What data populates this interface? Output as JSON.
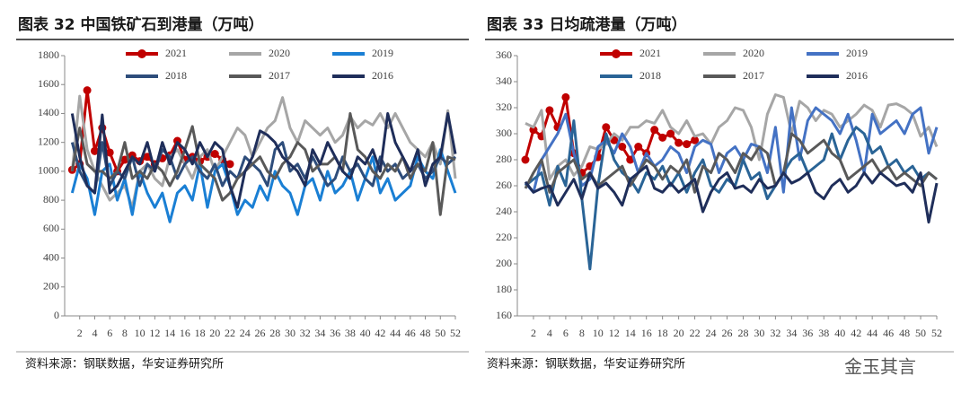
{
  "chart_data": [
    {
      "type": "line",
      "title": "图表 32  中国铁矿石到港量（万吨）",
      "source": "资料来源：钢联数据，华安证券研究所",
      "x": [
        1,
        2,
        3,
        4,
        5,
        6,
        7,
        8,
        9,
        10,
        11,
        12,
        13,
        14,
        15,
        16,
        17,
        18,
        19,
        20,
        21,
        22,
        23,
        24,
        25,
        26,
        27,
        28,
        29,
        30,
        31,
        32,
        33,
        34,
        35,
        36,
        37,
        38,
        39,
        40,
        41,
        42,
        43,
        44,
        45,
        46,
        47,
        48,
        49,
        50,
        51,
        52
      ],
      "xlim": [
        0,
        52
      ],
      "xticks": [
        2,
        4,
        6,
        8,
        10,
        12,
        14,
        16,
        18,
        20,
        22,
        24,
        26,
        28,
        30,
        32,
        34,
        36,
        38,
        40,
        42,
        44,
        46,
        48,
        50,
        52
      ],
      "ylim": [
        0,
        1800
      ],
      "yticks": [
        0,
        200,
        400,
        600,
        800,
        1000,
        1200,
        1400,
        1600,
        1800
      ],
      "series": [
        {
          "name": "2021",
          "color": "#c00000",
          "markers": true,
          "values": [
            1010,
            1050,
            1560,
            1140,
            1300,
            1130,
            1000,
            1080,
            1110,
            1070,
            1100,
            1050,
            1090,
            1110,
            1210,
            1080,
            1100,
            1070,
            1100,
            1120,
            1080,
            1050,
            null,
            null,
            null,
            null,
            null,
            null,
            null,
            null,
            null,
            null,
            null,
            null,
            null,
            null,
            null,
            null,
            null,
            null,
            null,
            null,
            null,
            null,
            null,
            null,
            null,
            null,
            null,
            null,
            null,
            null
          ]
        },
        {
          "name": "2020",
          "color": "#a6a6a6",
          "values": [
            1000,
            1520,
            1150,
            1000,
            900,
            800,
            850,
            900,
            750,
            1000,
            1050,
            950,
            900,
            1100,
            1150,
            1050,
            950,
            1100,
            1150,
            1000,
            1100,
            1200,
            1300,
            1250,
            1100,
            1200,
            1300,
            1350,
            1510,
            1300,
            1200,
            1350,
            1300,
            1250,
            1300,
            1200,
            1250,
            1380,
            1300,
            1350,
            1320,
            1400,
            1300,
            1400,
            1300,
            1200,
            1150,
            1100,
            1200,
            1050,
            1420,
            950
          ]
        },
        {
          "name": "2019",
          "color": "#1a7fd4",
          "values": [
            850,
            1050,
            950,
            700,
            1000,
            1050,
            800,
            950,
            700,
            1000,
            850,
            750,
            850,
            650,
            850,
            900,
            800,
            1050,
            750,
            1000,
            1050,
            900,
            700,
            800,
            750,
            900,
            800,
            1000,
            900,
            850,
            700,
            900,
            950,
            800,
            1000,
            850,
            900,
            1000,
            800,
            950,
            1100,
            850,
            950,
            800,
            850,
            900,
            1100,
            1000,
            950,
            1150,
            1000,
            850
          ]
        },
        {
          "name": "2018",
          "color": "#2e4d7b",
          "values": [
            1200,
            1000,
            900,
            850,
            1200,
            900,
            1000,
            950,
            1100,
            900,
            1050,
            1000,
            1150,
            1100,
            950,
            1050,
            1100,
            1000,
            950,
            1050,
            900,
            1000,
            950,
            1100,
            1050,
            1000,
            900,
            1150,
            1200,
            1000,
            1050,
            950,
            1100,
            1000,
            900,
            950,
            1100,
            1000,
            1050,
            950,
            900,
            1100,
            1000,
            1050,
            950,
            1000,
            1050,
            950,
            1000,
            1100,
            1050,
            1100
          ]
        },
        {
          "name": "2017",
          "color": "#595959",
          "values": [
            1000,
            1300,
            1050,
            1000,
            1000,
            950,
            1000,
            1200,
            950,
            1000,
            950,
            1050,
            1000,
            900,
            1000,
            1150,
            1310,
            1050,
            1000,
            950,
            800,
            850,
            950,
            1000,
            1050,
            1100,
            1000,
            950,
            1050,
            1100,
            1200,
            1150,
            1000,
            1050,
            1050,
            1100,
            1000,
            1400,
            1150,
            1100,
            1000,
            950,
            1050,
            1000,
            1100,
            950,
            1050,
            1000,
            1200,
            700,
            1100,
            1080
          ]
        },
        {
          "name": "2016",
          "color": "#1f2e5a",
          "values": [
            1400,
            1100,
            900,
            850,
            1390,
            850,
            900,
            1000,
            1100,
            1050,
            1200,
            1000,
            1200,
            1050,
            1200,
            1150,
            1050,
            1200,
            1100,
            1200,
            1150,
            900,
            750,
            1000,
            1100,
            1280,
            1250,
            1200,
            1100,
            1050,
            1000,
            900,
            1150,
            1050,
            1200,
            1100,
            1000,
            950,
            1100,
            1050,
            1150,
            1000,
            1400,
            1200,
            1100,
            1000,
            1150,
            900,
            1050,
            1100,
            1400,
            1120
          ]
        }
      ]
    },
    {
      "type": "line",
      "title": "图表 33  日均疏港量（万吨）",
      "source": "资料来源：钢联数据，华安证券研究所",
      "watermark": "金玉其言",
      "x": [
        1,
        2,
        3,
        4,
        5,
        6,
        7,
        8,
        9,
        10,
        11,
        12,
        13,
        14,
        15,
        16,
        17,
        18,
        19,
        20,
        21,
        22,
        23,
        24,
        25,
        26,
        27,
        28,
        29,
        30,
        31,
        32,
        33,
        34,
        35,
        36,
        37,
        38,
        39,
        40,
        41,
        42,
        43,
        44,
        45,
        46,
        47,
        48,
        49,
        50,
        51,
        52
      ],
      "xlim": [
        0,
        52
      ],
      "xticks": [
        2,
        4,
        6,
        8,
        10,
        12,
        14,
        16,
        18,
        20,
        22,
        24,
        26,
        28,
        30,
        32,
        34,
        36,
        38,
        40,
        42,
        44,
        46,
        48,
        50,
        52
      ],
      "ylim": [
        160,
        360
      ],
      "yticks": [
        160,
        180,
        200,
        220,
        240,
        260,
        280,
        300,
        320,
        340,
        360
      ],
      "series": [
        {
          "name": "2021",
          "color": "#c00000",
          "markers": true,
          "values": [
            280,
            303,
            298,
            318,
            305,
            328,
            285,
            270,
            275,
            282,
            305,
            295,
            290,
            280,
            290,
            285,
            303,
            297,
            300,
            293,
            292,
            295,
            null,
            null,
            null,
            null,
            null,
            null,
            null,
            null,
            null,
            null,
            null,
            null,
            null,
            null,
            null,
            null,
            null,
            null,
            null,
            null,
            null,
            null,
            null,
            null,
            null,
            null,
            null,
            null,
            null,
            null
          ]
        },
        {
          "name": "2020",
          "color": "#a6a6a6",
          "values": [
            308,
            305,
            318,
            265,
            275,
            280,
            268,
            275,
            290,
            288,
            292,
            300,
            295,
            305,
            305,
            310,
            308,
            318,
            305,
            300,
            310,
            298,
            300,
            292,
            305,
            310,
            320,
            318,
            305,
            280,
            315,
            330,
            328,
            300,
            325,
            320,
            310,
            318,
            315,
            305,
            310,
            315,
            322,
            318,
            305,
            322,
            323,
            320,
            315,
            298,
            305,
            290
          ]
        },
        {
          "name": "2019",
          "color": "#4472c4",
          "values": [
            262,
            255,
            280,
            290,
            300,
            315,
            285,
            260,
            265,
            290,
            295,
            285,
            300,
            290,
            270,
            285,
            275,
            280,
            290,
            285,
            270,
            290,
            295,
            292,
            270,
            285,
            290,
            280,
            292,
            290,
            270,
            305,
            255,
            320,
            280,
            310,
            320,
            315,
            310,
            300,
            315,
            295,
            270,
            315,
            300,
            305,
            310,
            300,
            315,
            320,
            285,
            305
          ]
        },
        {
          "name": "2018",
          "color": "#2a6496",
          "values": [
            260,
            265,
            270,
            245,
            275,
            260,
            310,
            250,
            196,
            260,
            300,
            280,
            270,
            265,
            255,
            270,
            265,
            275,
            260,
            270,
            255,
            270,
            280,
            260,
            255,
            265,
            260,
            280,
            265,
            270,
            250,
            260,
            270,
            280,
            285,
            270,
            275,
            280,
            300,
            280,
            295,
            305,
            300,
            285,
            290,
            275,
            280,
            270,
            275,
            265,
            270,
            265
          ]
        },
        {
          "name": "2017",
          "color": "#595959",
          "values": [
            258,
            270,
            280,
            255,
            270,
            275,
            280,
            265,
            270,
            260,
            265,
            270,
            275,
            260,
            270,
            280,
            275,
            265,
            275,
            270,
            280,
            255,
            275,
            270,
            285,
            280,
            270,
            285,
            280,
            290,
            285,
            260,
            270,
            300,
            295,
            285,
            290,
            295,
            285,
            280,
            265,
            270,
            275,
            280,
            270,
            275,
            265,
            270,
            265,
            260,
            270,
            265
          ]
        },
        {
          "name": "2016",
          "color": "#1f2e5a",
          "values": [
            263,
            255,
            258,
            260,
            245,
            255,
            265,
            250,
            270,
            258,
            262,
            255,
            245,
            265,
            270,
            275,
            258,
            255,
            262,
            255,
            260,
            265,
            240,
            255,
            265,
            270,
            258,
            260,
            255,
            265,
            258,
            260,
            270,
            262,
            265,
            270,
            255,
            250,
            260,
            265,
            255,
            260,
            270,
            262,
            270,
            265,
            260,
            262,
            255,
            270,
            232,
            262
          ]
        }
      ]
    }
  ]
}
